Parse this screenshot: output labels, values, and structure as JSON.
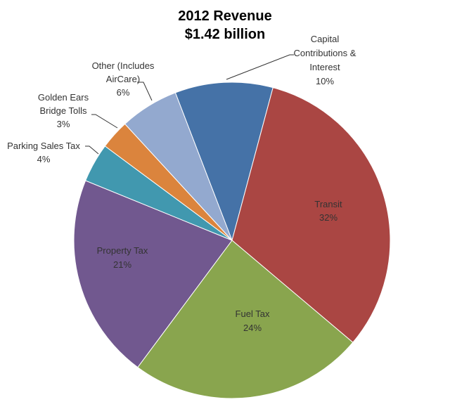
{
  "chart_data": {
    "type": "pie",
    "title": [
      "2012 Revenue",
      "$1.42 billion"
    ],
    "start_angle_deg": 339,
    "direction": "clockwise",
    "legend": "none",
    "slices": [
      {
        "name": "Capital Contributions & Interest",
        "label_lines": [
          "Capital",
          "Contributions &",
          "Interest"
        ],
        "value": 10,
        "value_label": "10%",
        "color": "#4572A7"
      },
      {
        "name": "Transit",
        "label_lines": [
          "Transit"
        ],
        "value": 32,
        "value_label": "32%",
        "color": "#AA4643"
      },
      {
        "name": "Fuel Tax",
        "label_lines": [
          "Fuel Tax"
        ],
        "value": 24,
        "value_label": "24%",
        "color": "#89A54E"
      },
      {
        "name": "Property Tax",
        "label_lines": [
          "Property Tax"
        ],
        "value": 21,
        "value_label": "21%",
        "color": "#71588F"
      },
      {
        "name": "Parking Sales Tax",
        "label_lines": [
          "Parking Sales Tax"
        ],
        "value": 4,
        "value_label": "4%",
        "color": "#4198AF"
      },
      {
        "name": "Golden Ears Bridge Tolls",
        "label_lines": [
          "Golden Ears",
          "Bridge Tolls"
        ],
        "value": 3,
        "value_label": "3%",
        "color": "#DB843D"
      },
      {
        "name": "Other (Includes AirCare)",
        "label_lines": [
          "Other (Includes",
          "AirCare)"
        ],
        "value": 6,
        "value_label": "6%",
        "color": "#93A9CF"
      }
    ]
  }
}
